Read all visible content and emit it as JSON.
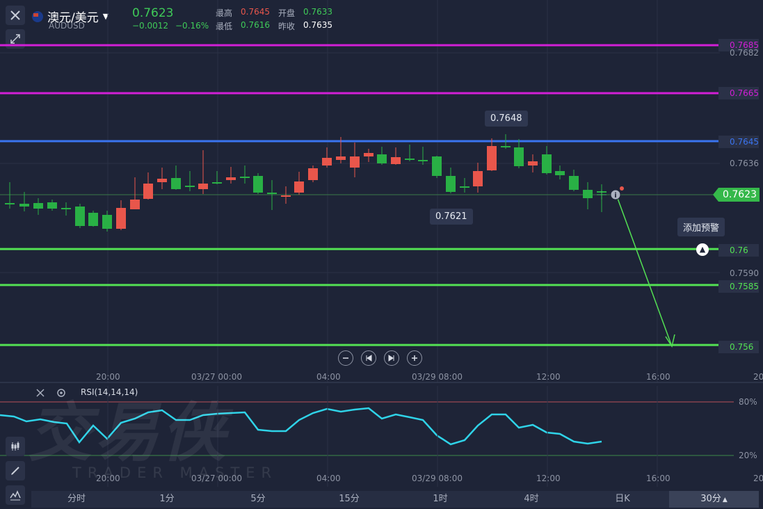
{
  "header": {
    "pair_name": "澳元/美元",
    "symbol": "AUDUSD",
    "price": "0.7623",
    "change": "−0.0012",
    "change_pct": "−0.16%",
    "high_label": "最高",
    "high": "0.7645",
    "low_label": "最低",
    "low": "0.7616",
    "open_label": "开盘",
    "open": "0.7633",
    "prev_close_label": "昨收",
    "prev_close": "0.7635"
  },
  "price_axis": {
    "lines": [
      {
        "label": "0.7685",
        "color": "#d21fd6"
      },
      {
        "label": "0.7665",
        "color": "#d21fd6"
      },
      {
        "label": "0.7645",
        "color": "#3a74f0"
      },
      {
        "label": "0.76",
        "color": "#53e153"
      },
      {
        "label": "0.7585",
        "color": "#53e153"
      },
      {
        "label": "0.756",
        "color": "#53e153"
      }
    ],
    "ticks": [
      "0.7682",
      "0.7636",
      "0.7590"
    ],
    "current": "0.7623"
  },
  "callouts": {
    "high": "0.7648",
    "low": "0.7621",
    "alert": "添加预警"
  },
  "time_axis": [
    "20:00",
    "03/27 00:00",
    "04:00",
    "03/29 08:00",
    "12:00",
    "16:00",
    "20"
  ],
  "indicator": {
    "name": "RSI(14,14,14)",
    "levels": [
      "80%",
      "20%"
    ]
  },
  "watermark": {
    "cn": "交易侠",
    "en": "TRADER MASTER"
  },
  "timeframes": [
    "分时",
    "1分",
    "5分",
    "15分",
    "1时",
    "4时",
    "日K",
    "30分"
  ],
  "active_timeframe": "30分",
  "colors": {
    "up": "#e8564b",
    "down": "#29b045",
    "rsi": "#2fd3e8"
  }
}
